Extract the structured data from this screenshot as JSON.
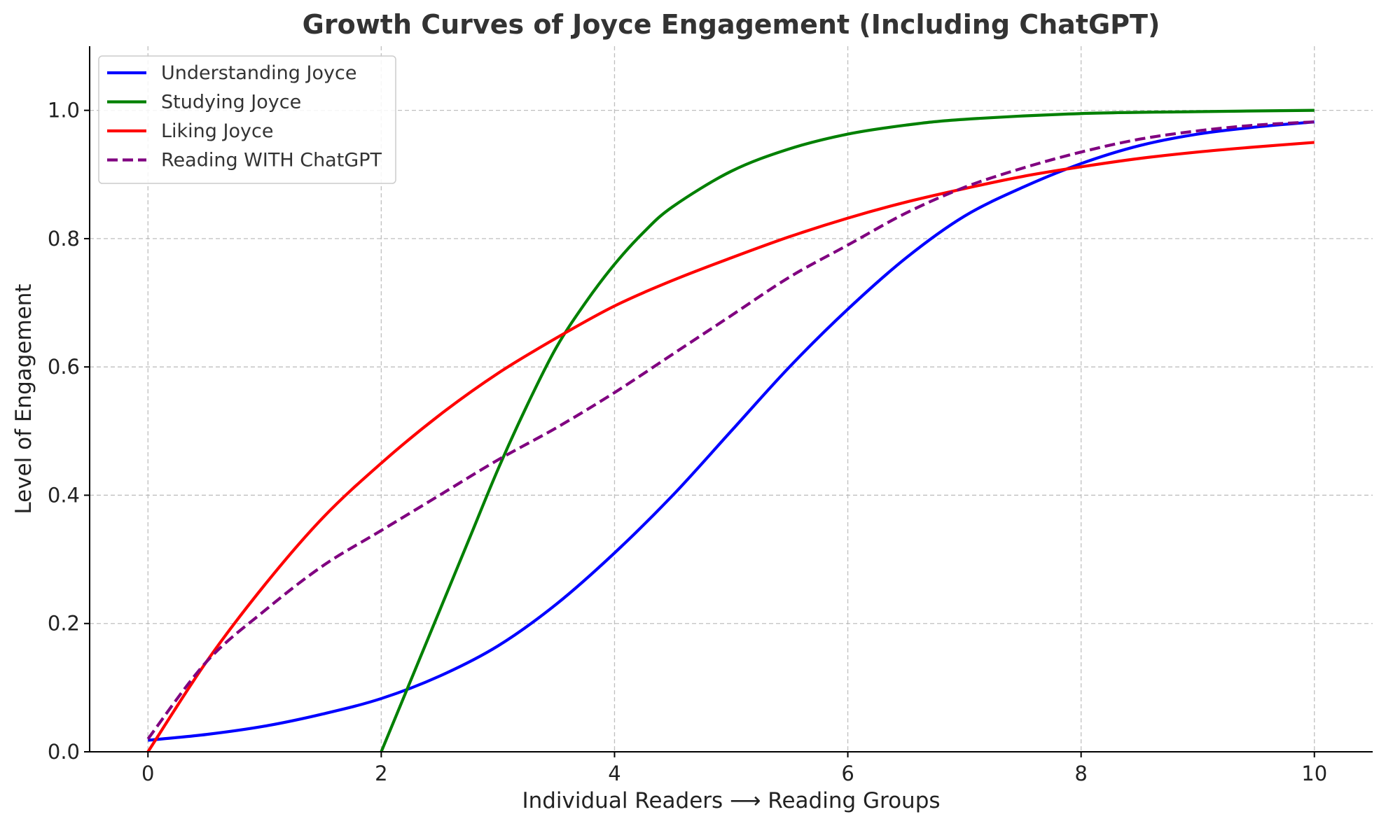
{
  "chart_data": {
    "type": "line",
    "title": "Growth Curves of Joyce Engagement (Including ChatGPT)",
    "xlabel": "Individual Readers ⟶ Reading Groups",
    "ylabel": "Level of Engagement",
    "xlim": [
      -0.5,
      10.5
    ],
    "ylim": [
      0.0,
      1.1
    ],
    "xticks": [
      0,
      2,
      4,
      6,
      8,
      10
    ],
    "xtick_labels": [
      "0",
      "2",
      "4",
      "6",
      "8",
      "10"
    ],
    "yticks": [
      0.0,
      0.2,
      0.4,
      0.6,
      0.8,
      1.0
    ],
    "ytick_labels": [
      "0.0",
      "0.2",
      "0.4",
      "0.6",
      "0.8",
      "1.0"
    ],
    "grid": true,
    "legend_position": "top-left",
    "series": [
      {
        "name": "Understanding Joyce",
        "color": "#0000ff",
        "style": "solid",
        "x": [
          0,
          0.5,
          1,
          1.5,
          2,
          2.5,
          3,
          3.5,
          4,
          4.5,
          5,
          5.5,
          6,
          6.5,
          7,
          7.5,
          8,
          8.5,
          9,
          9.5,
          10
        ],
        "y": [
          0.018,
          0.027,
          0.04,
          0.059,
          0.083,
          0.118,
          0.165,
          0.23,
          0.31,
          0.4,
          0.5,
          0.6,
          0.69,
          0.77,
          0.835,
          0.88,
          0.917,
          0.945,
          0.963,
          0.974,
          0.982
        ]
      },
      {
        "name": "Studying Joyce",
        "color": "#008000",
        "style": "solid",
        "x": [
          2,
          2.25,
          2.5,
          2.75,
          3,
          3.25,
          3.5,
          3.75,
          4,
          4.25,
          4.5,
          5,
          5.5,
          6,
          6.5,
          7,
          8,
          9,
          10
        ],
        "y": [
          0.0,
          0.11,
          0.22,
          0.33,
          0.44,
          0.54,
          0.63,
          0.7,
          0.76,
          0.81,
          0.85,
          0.905,
          0.94,
          0.963,
          0.977,
          0.986,
          0.995,
          0.998,
          1.0
        ]
      },
      {
        "name": "Liking Joyce",
        "color": "#ff0000",
        "style": "solid",
        "x": [
          0,
          0.5,
          1,
          1.5,
          2,
          2.5,
          3,
          3.5,
          4,
          4.5,
          5,
          5.5,
          6,
          6.5,
          7,
          7.5,
          8,
          8.5,
          9,
          9.5,
          10
        ],
        "y": [
          0.0,
          0.14,
          0.26,
          0.365,
          0.45,
          0.525,
          0.59,
          0.645,
          0.695,
          0.735,
          0.77,
          0.803,
          0.832,
          0.857,
          0.878,
          0.897,
          0.912,
          0.925,
          0.935,
          0.943,
          0.95
        ]
      },
      {
        "name": "Reading WITH ChatGPT",
        "color": "#800080",
        "style": "dashed",
        "x": [
          0,
          0.5,
          1,
          1.5,
          2,
          2.5,
          3,
          3.5,
          4,
          4.5,
          5,
          5.5,
          6,
          6.5,
          7,
          7.5,
          8,
          8.5,
          9,
          9.5,
          10
        ],
        "y": [
          0.02,
          0.14,
          0.22,
          0.29,
          0.345,
          0.4,
          0.455,
          0.505,
          0.56,
          0.62,
          0.68,
          0.74,
          0.79,
          0.84,
          0.88,
          0.91,
          0.935,
          0.955,
          0.968,
          0.977,
          0.982
        ]
      }
    ]
  }
}
